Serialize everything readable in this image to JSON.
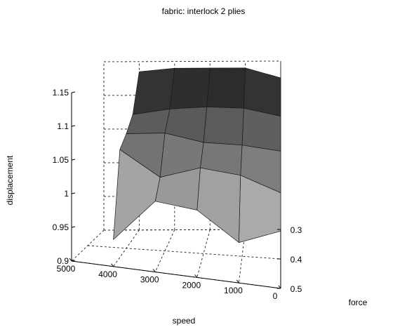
{
  "chart_data": {
    "type": "surface",
    "title": "fabric: interlock 2 plies",
    "xlabel": "speed",
    "ylabel": "force",
    "zlabel": "displacement",
    "colormap": "gray",
    "grid": true,
    "x_ticks": [
      "5000",
      "4000",
      "3000",
      "2000",
      "1000",
      "0"
    ],
    "x_tick_values": [
      5000,
      4000,
      3000,
      2000,
      1000,
      0
    ],
    "y_ticks": [
      "0.3",
      "0.4",
      "0.5"
    ],
    "y_tick_values": [
      0.3,
      0.4,
      0.5
    ],
    "z_ticks": [
      "0.9",
      "0.95",
      "1",
      "1.05",
      "1.1",
      "1.15"
    ],
    "z_tick_values": [
      0.9,
      0.95,
      1.0,
      1.05,
      1.1,
      1.15
    ],
    "xlim": [
      0,
      5000
    ],
    "ylim": [
      0.3,
      0.5
    ],
    "zlim": [
      0.9,
      1.15
    ],
    "x": [
      0,
      1000,
      2000,
      3000,
      4000
    ],
    "y": [
      0.3,
      0.35,
      0.4,
      0.45,
      0.5
    ],
    "z": [
      [
        1.125,
        1.14,
        1.14,
        1.14,
        1.135
      ],
      [
        1.09,
        1.1,
        1.1,
        1.095,
        1.085
      ],
      [
        1.06,
        1.065,
        1.065,
        1.075,
        1.07
      ],
      [
        1.02,
        1.04,
        1.045,
        1.025,
        1.06
      ],
      [
        0.985,
        0.96,
        1.0,
        1.005,
        0.94
      ]
    ]
  }
}
